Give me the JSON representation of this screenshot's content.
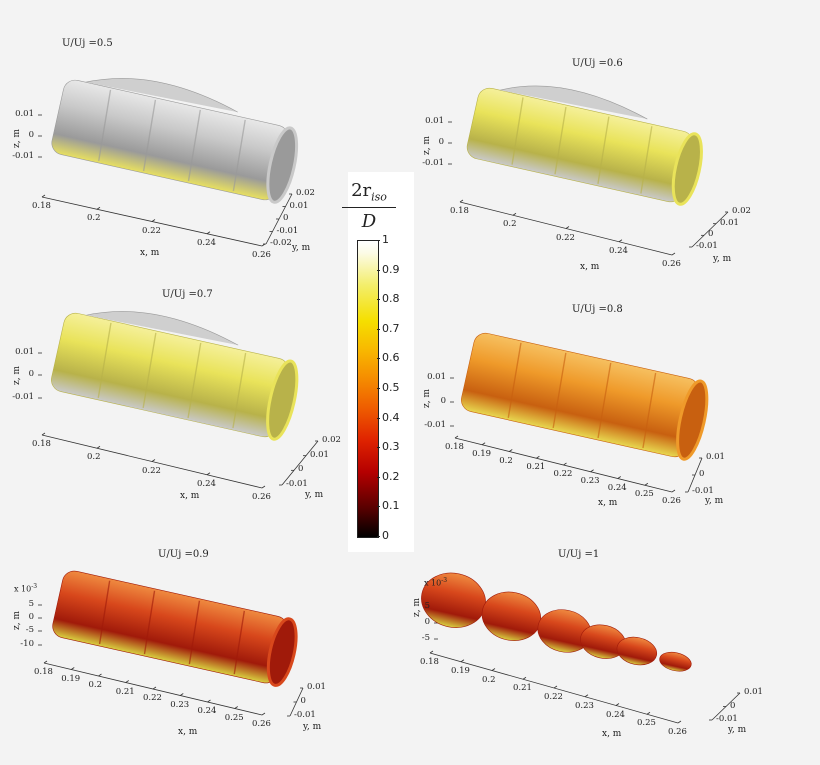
{
  "colorbar": {
    "title_num": "2r",
    "title_sub": "iso",
    "title_den": "D",
    "ticks": [
      "1",
      "0.9",
      "0.8",
      "0.7",
      "0.6",
      "0.5",
      "0.4",
      "0.3",
      "0.2",
      "0.1",
      "0"
    ],
    "colormap": [
      "#000000",
      "#5a0000",
      "#b50000",
      "#e02400",
      "#ee5a00",
      "#f58a00",
      "#f8b700",
      "#f5df00",
      "#f3ee6a",
      "#fcfbe6",
      "#ffffff"
    ]
  },
  "panels": [
    {
      "title": "U/Uj =0.5",
      "zticks": [
        "0.01",
        "0",
        "-0.01"
      ],
      "xticks": [
        "0.18",
        "0.2",
        "0.22",
        "0.24",
        "0.26"
      ],
      "yticks": [
        "0.02",
        "0.01",
        "0",
        "-0.01",
        "-0.02"
      ],
      "xlabel": "x, m",
      "ylabel": "y, m",
      "zlabel": "z, m",
      "fill": "gray"
    },
    {
      "title": "U/Uj =0.6",
      "zticks": [
        "0.01",
        "0",
        "-0.01"
      ],
      "xticks": [
        "0.18",
        "0.2",
        "0.22",
        "0.24",
        "0.26"
      ],
      "yticks": [
        "0.02",
        "0.01",
        "0",
        "-0.01"
      ],
      "xlabel": "x, m",
      "ylabel": "y, m",
      "zlabel": "z, m",
      "fill": "yellow"
    },
    {
      "title": "U/Uj =0.7",
      "zticks": [
        "0.01",
        "0",
        "-0.01"
      ],
      "xticks": [
        "0.18",
        "0.2",
        "0.22",
        "0.24",
        "0.26"
      ],
      "yticks": [
        "0.02",
        "0.01",
        "0",
        "-0.01"
      ],
      "xlabel": "x, m",
      "ylabel": "y, m",
      "zlabel": "z, m",
      "fill": "yellow"
    },
    {
      "title": "U/Uj =0.8",
      "zticks": [
        "0.01",
        "0",
        "-0.01"
      ],
      "xticks": [
        "0.18",
        "0.19",
        "0.2",
        "0.21",
        "0.22",
        "0.23",
        "0.24",
        "0.25",
        "0.26"
      ],
      "yticks": [
        "0.01",
        "0",
        "-0.01"
      ],
      "xlabel": "x, m",
      "ylabel": "y, m",
      "zlabel": "z, m",
      "fill": "orange"
    },
    {
      "title": "U/Uj =0.9",
      "zticks": [
        "5",
        "0",
        "-5",
        "-10"
      ],
      "multiplier": "x 10",
      "exponent": "-3",
      "xticks": [
        "0.18",
        "0.19",
        "0.2",
        "0.21",
        "0.22",
        "0.23",
        "0.24",
        "0.25",
        "0.26"
      ],
      "yticks": [
        "0.01",
        "0",
        "-0.01"
      ],
      "xlabel": "x, m",
      "ylabel": "y, m",
      "zlabel": "z, m",
      "fill": "red"
    },
    {
      "title": "U/Uj =1",
      "zticks": [
        "5",
        "0",
        "-5"
      ],
      "multiplier": "x 10",
      "exponent": "-3",
      "xticks": [
        "0.18",
        "0.19",
        "0.2",
        "0.21",
        "0.22",
        "0.23",
        "0.24",
        "0.25",
        "0.26"
      ],
      "yticks": [
        "0.01",
        "0",
        "-0.01"
      ],
      "xlabel": "x, m",
      "ylabel": "y, m",
      "zlabel": "z, m",
      "fill": "red"
    }
  ]
}
